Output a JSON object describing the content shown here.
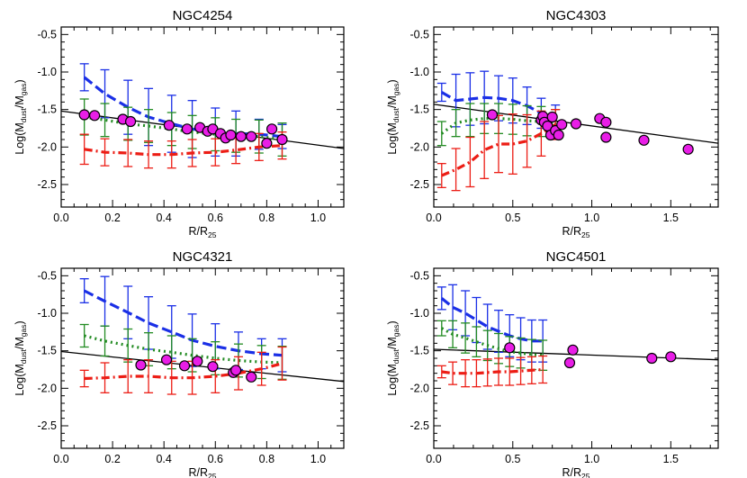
{
  "chart_data": [
    {
      "type": "line",
      "title": "NGC4254",
      "xlabel": "R/R",
      "xlabel_sub": "25",
      "ylabel": "Log(M",
      "ylabel_sub1": "dust",
      "ylabel_mid": "/M",
      "ylabel_sub2": "gas",
      "ylabel_end": ")",
      "xlim": [
        0,
        1.1
      ],
      "ylim": [
        -2.8,
        -0.4
      ],
      "xticks": [
        0.0,
        0.2,
        0.4,
        0.6,
        0.8,
        1.0
      ],
      "xtick_labels": [
        "0.0",
        "0.2",
        "0.4",
        "0.6",
        "0.8",
        "1.0"
      ],
      "yticks": [
        -0.5,
        -1.0,
        -1.5,
        -2.0,
        -2.5
      ],
      "ytick_labels": [
        "-0.5",
        "-1.0",
        "-1.5",
        "-2.0",
        "-2.5"
      ],
      "fit_line": {
        "x": [
          0.0,
          1.1
        ],
        "y": [
          -1.52,
          -2.02
        ]
      },
      "points": {
        "x": [
          0.09,
          0.13,
          0.24,
          0.27,
          0.42,
          0.49,
          0.54,
          0.57,
          0.59,
          0.62,
          0.64,
          0.66,
          0.7,
          0.74,
          0.8,
          0.82,
          0.86
        ],
        "y": [
          -1.57,
          -1.58,
          -1.63,
          -1.66,
          -1.71,
          -1.76,
          -1.74,
          -1.79,
          -1.76,
          -1.82,
          -1.88,
          -1.84,
          -1.86,
          -1.86,
          -1.95,
          -1.76,
          -1.9
        ]
      },
      "series": [
        {
          "name": "blue",
          "color": "#1a2fe6",
          "dash": "dashed",
          "x": [
            0.09,
            0.17,
            0.26,
            0.34,
            0.43,
            0.51,
            0.6,
            0.68,
            0.77,
            0.86
          ],
          "y": [
            -1.07,
            -1.29,
            -1.47,
            -1.6,
            -1.69,
            -1.76,
            -1.8,
            -1.82,
            -1.83,
            -1.86
          ],
          "err": [
            0.18,
            0.32,
            0.36,
            0.38,
            0.38,
            0.38,
            0.32,
            0.3,
            0.2,
            0.16
          ]
        },
        {
          "name": "green",
          "color": "#228b22",
          "dash": "dotted",
          "x": [
            0.09,
            0.17,
            0.26,
            0.34,
            0.43,
            0.51,
            0.6,
            0.68,
            0.77,
            0.86
          ],
          "y": [
            -1.6,
            -1.64,
            -1.69,
            -1.72,
            -1.76,
            -1.8,
            -1.83,
            -1.85,
            -1.86,
            -1.9
          ],
          "err": [
            0.24,
            0.22,
            0.22,
            0.22,
            0.22,
            0.22,
            0.22,
            0.22,
            0.22,
            0.22
          ]
        },
        {
          "name": "red",
          "color": "#ec1d15",
          "dash": "dashdot",
          "x": [
            0.09,
            0.17,
            0.26,
            0.34,
            0.43,
            0.51,
            0.6,
            0.68,
            0.77,
            0.86
          ],
          "y": [
            -2.03,
            -2.07,
            -2.08,
            -2.1,
            -2.1,
            -2.08,
            -2.07,
            -2.04,
            -2.0,
            -1.98
          ],
          "err": [
            0.2,
            0.18,
            0.18,
            0.18,
            0.18,
            0.18,
            0.18,
            0.18,
            0.18,
            0.18
          ]
        }
      ]
    },
    {
      "type": "line",
      "title": "NGC4303",
      "xlabel": "R/R",
      "xlabel_sub": "25",
      "ylabel": "Log(M",
      "ylabel_sub1": "dust",
      "ylabel_mid": "/M",
      "ylabel_sub2": "gas",
      "ylabel_end": ")",
      "xlim": [
        0,
        1.8
      ],
      "ylim": [
        -2.8,
        -0.4
      ],
      "xticks": [
        0.0,
        0.5,
        1.0,
        1.5
      ],
      "xtick_labels": [
        "0.0",
        "0.5",
        "1.0",
        "1.5"
      ],
      "yticks": [
        -0.5,
        -1.0,
        -1.5,
        -2.0,
        -2.5
      ],
      "ytick_labels": [
        "-0.5",
        "-1.0",
        "-1.5",
        "-2.0",
        "-2.5"
      ],
      "fit_line": {
        "x": [
          0.0,
          1.8
        ],
        "y": [
          -1.43,
          -1.95
        ]
      },
      "points": {
        "x": [
          0.37,
          0.68,
          0.69,
          0.7,
          0.72,
          0.74,
          0.75,
          0.77,
          0.79,
          0.81,
          0.9,
          1.05,
          1.09,
          1.09,
          1.33,
          1.61
        ],
        "y": [
          -1.57,
          -1.64,
          -1.59,
          -1.67,
          -1.72,
          -1.84,
          -1.6,
          -1.78,
          -1.84,
          -1.7,
          -1.69,
          -1.62,
          -1.67,
          -1.87,
          -1.91,
          -2.03
        ]
      },
      "series": [
        {
          "name": "blue",
          "color": "#1a2fe6",
          "dash": "dashed",
          "x": [
            0.05,
            0.14,
            0.23,
            0.32,
            0.41,
            0.5,
            0.59,
            0.68,
            0.77
          ],
          "y": [
            -1.27,
            -1.38,
            -1.36,
            -1.34,
            -1.35,
            -1.38,
            -1.45,
            -1.55,
            -1.62
          ],
          "err": [
            0.12,
            0.35,
            0.35,
            0.35,
            0.3,
            0.3,
            0.25,
            0.2,
            0.18
          ]
        },
        {
          "name": "green",
          "color": "#228b22",
          "dash": "dotted",
          "x": [
            0.05,
            0.14,
            0.23,
            0.32,
            0.41,
            0.5,
            0.59,
            0.68,
            0.77
          ],
          "y": [
            -1.82,
            -1.68,
            -1.64,
            -1.62,
            -1.62,
            -1.63,
            -1.65,
            -1.66,
            -1.68
          ],
          "err": [
            0.16,
            0.18,
            0.22,
            0.2,
            0.2,
            0.2,
            0.2,
            0.2,
            0.18
          ]
        },
        {
          "name": "red",
          "color": "#ec1d15",
          "dash": "dashdot",
          "x": [
            0.05,
            0.14,
            0.23,
            0.32,
            0.41,
            0.5,
            0.59,
            0.68,
            0.77
          ],
          "y": [
            -2.38,
            -2.3,
            -2.2,
            -2.04,
            -1.96,
            -1.96,
            -1.92,
            -1.82,
            -1.7
          ],
          "err": [
            0.16,
            0.28,
            0.33,
            0.38,
            0.38,
            0.4,
            0.35,
            0.3,
            0.2
          ]
        }
      ]
    },
    {
      "type": "line",
      "title": "NGC4321",
      "xlabel": "R/R",
      "xlabel_sub": "25",
      "ylabel": "Log(M",
      "ylabel_sub1": "dust",
      "ylabel_mid": "/M",
      "ylabel_sub2": "gas",
      "ylabel_end": ")",
      "xlim": [
        0,
        1.1
      ],
      "ylim": [
        -2.8,
        -0.4
      ],
      "xticks": [
        0.0,
        0.2,
        0.4,
        0.6,
        0.8,
        1.0
      ],
      "xtick_labels": [
        "0.0",
        "0.2",
        "0.4",
        "0.6",
        "0.8",
        "1.0"
      ],
      "yticks": [
        -0.5,
        -1.0,
        -1.5,
        -2.0,
        -2.5
      ],
      "ytick_labels": [
        "-0.5",
        "-1.0",
        "-1.5",
        "-2.0",
        "-2.5"
      ],
      "fit_line": {
        "x": [
          0.0,
          1.1
        ],
        "y": [
          -1.51,
          -1.91
        ]
      },
      "points": {
        "x": [
          0.31,
          0.41,
          0.48,
          0.53,
          0.59,
          0.67,
          0.68,
          0.74
        ],
        "y": [
          -1.69,
          -1.62,
          -1.7,
          -1.64,
          -1.71,
          -1.79,
          -1.76,
          -1.85
        ]
      },
      "series": [
        {
          "name": "blue",
          "color": "#1a2fe6",
          "dash": "dashed",
          "x": [
            0.09,
            0.17,
            0.26,
            0.34,
            0.43,
            0.51,
            0.6,
            0.69,
            0.78,
            0.86
          ],
          "y": [
            -0.7,
            -0.84,
            -0.99,
            -1.13,
            -1.25,
            -1.36,
            -1.44,
            -1.5,
            -1.54,
            -1.56
          ],
          "err": [
            0.16,
            0.33,
            0.35,
            0.35,
            0.35,
            0.35,
            0.3,
            0.25,
            0.2,
            0.22
          ]
        },
        {
          "name": "green",
          "color": "#228b22",
          "dash": "dotted",
          "x": [
            0.09,
            0.17,
            0.26,
            0.34,
            0.43,
            0.51,
            0.6,
            0.69,
            0.78,
            0.86
          ],
          "y": [
            -1.3,
            -1.37,
            -1.43,
            -1.48,
            -1.52,
            -1.56,
            -1.6,
            -1.63,
            -1.65,
            -1.66
          ],
          "err": [
            0.15,
            0.2,
            0.22,
            0.22,
            0.22,
            0.22,
            0.22,
            0.22,
            0.22,
            0.22
          ]
        },
        {
          "name": "red",
          "color": "#ec1d15",
          "dash": "dashdot",
          "x": [
            0.09,
            0.17,
            0.26,
            0.34,
            0.43,
            0.51,
            0.6,
            0.69,
            0.78,
            0.86
          ],
          "y": [
            -1.87,
            -1.86,
            -1.84,
            -1.84,
            -1.86,
            -1.86,
            -1.84,
            -1.8,
            -1.74,
            -1.67
          ],
          "err": [
            0.11,
            0.2,
            0.22,
            0.22,
            0.22,
            0.22,
            0.22,
            0.22,
            0.22,
            0.22
          ]
        }
      ]
    },
    {
      "type": "line",
      "title": "NGC4501",
      "xlabel": "R/R",
      "xlabel_sub": "25",
      "ylabel": "Log(M",
      "ylabel_sub1": "dust",
      "ylabel_mid": "/M",
      "ylabel_sub2": "gas",
      "ylabel_end": ")",
      "xlim": [
        0,
        1.8
      ],
      "ylim": [
        -2.8,
        -0.4
      ],
      "xticks": [
        0.0,
        0.5,
        1.0,
        1.5
      ],
      "xtick_labels": [
        "0.0",
        "0.5",
        "1.0",
        "1.5"
      ],
      "yticks": [
        -0.5,
        -1.0,
        -1.5,
        -2.0,
        -2.5
      ],
      "ytick_labels": [
        "-0.5",
        "-1.0",
        "-1.5",
        "-2.0",
        "-2.5"
      ],
      "fit_line": {
        "x": [
          0.0,
          1.8
        ],
        "y": [
          -1.48,
          -1.62
        ]
      },
      "points": {
        "x": [
          0.48,
          0.86,
          0.88,
          1.38,
          1.5
        ],
        "y": [
          -1.46,
          -1.66,
          -1.49,
          -1.6,
          -1.58
        ]
      },
      "series": [
        {
          "name": "blue",
          "color": "#1a2fe6",
          "dash": "dashed",
          "x": [
            0.05,
            0.12,
            0.2,
            0.27,
            0.34,
            0.41,
            0.48,
            0.55,
            0.62,
            0.69
          ],
          "y": [
            -0.8,
            -0.92,
            -1.0,
            -1.09,
            -1.18,
            -1.24,
            -1.3,
            -1.34,
            -1.37,
            -1.37
          ],
          "err": [
            0.15,
            0.3,
            0.3,
            0.3,
            0.3,
            0.28,
            0.28,
            0.28,
            0.28,
            0.28
          ]
        },
        {
          "name": "green",
          "color": "#228b22",
          "dash": "dotted",
          "x": [
            0.05,
            0.12,
            0.2,
            0.27,
            0.34,
            0.41,
            0.48,
            0.55,
            0.62,
            0.69
          ],
          "y": [
            -1.2,
            -1.28,
            -1.33,
            -1.38,
            -1.43,
            -1.47,
            -1.51,
            -1.53,
            -1.55,
            -1.56
          ],
          "err": [
            0.1,
            0.18,
            0.2,
            0.2,
            0.2,
            0.2,
            0.2,
            0.2,
            0.2,
            0.2
          ]
        },
        {
          "name": "red",
          "color": "#ec1d15",
          "dash": "dashdot",
          "x": [
            0.05,
            0.12,
            0.2,
            0.27,
            0.34,
            0.41,
            0.48,
            0.55,
            0.62,
            0.69
          ],
          "y": [
            -1.78,
            -1.8,
            -1.8,
            -1.8,
            -1.79,
            -1.78,
            -1.78,
            -1.77,
            -1.76,
            -1.75
          ],
          "err": [
            0.08,
            0.15,
            0.18,
            0.18,
            0.18,
            0.18,
            0.18,
            0.18,
            0.18,
            0.18
          ]
        }
      ]
    }
  ],
  "colors": {
    "points_fill": "#e81ee6",
    "fit_line": "#000000",
    "axis": "#000000"
  }
}
